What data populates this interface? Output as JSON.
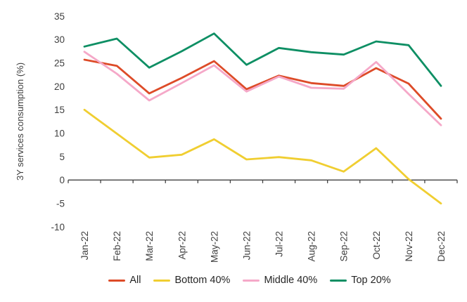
{
  "chart_data": {
    "type": "line",
    "title": "",
    "ylabel": "3Y services consumption (%)",
    "xlabel": "",
    "categories": [
      "Jan-22",
      "Feb-22",
      "Mar-22",
      "Apr-22",
      "May-22",
      "Jun-22",
      "Jul-22",
      "Aug-22",
      "Sep-22",
      "Oct-22",
      "Nov-22",
      "Dec-22"
    ],
    "series": [
      {
        "name": "All",
        "color": "#dd4b28",
        "values": [
          25.7,
          24.4,
          18.5,
          21.8,
          25.4,
          19.4,
          22.3,
          20.7,
          20.1,
          23.9,
          20.6,
          13.1
        ]
      },
      {
        "name": "Bottom 40%",
        "color": "#f0ce31",
        "values": [
          15.0,
          9.9,
          4.8,
          5.4,
          8.7,
          4.4,
          4.9,
          4.2,
          1.8,
          6.8,
          0.2,
          -5.0
        ]
      },
      {
        "name": "Middle 40%",
        "color": "#f5a8c8",
        "values": [
          27.4,
          22.7,
          17.0,
          20.7,
          24.5,
          18.9,
          22.1,
          19.7,
          19.5,
          25.2,
          18.4,
          11.7
        ]
      },
      {
        "name": "Top 20%",
        "color": "#0e8f64",
        "values": [
          28.5,
          30.2,
          24.0,
          27.5,
          31.3,
          24.6,
          28.2,
          27.3,
          26.8,
          29.6,
          28.8,
          20.1
        ]
      }
    ],
    "ylim": [
      -10,
      35
    ],
    "yticks": [
      35,
      30,
      25,
      20,
      15,
      10,
      5,
      0,
      -5,
      -10
    ],
    "grid": false,
    "legend_position": "bottom",
    "axis_color": "#404040",
    "text_color": "#404040",
    "legend_text_color": "#262626"
  }
}
